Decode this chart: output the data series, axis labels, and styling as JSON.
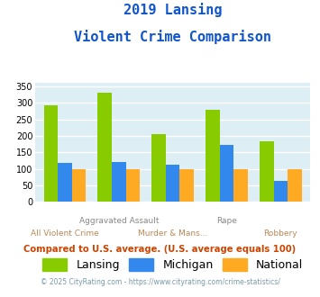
{
  "title_line1": "2019 Lansing",
  "title_line2": "Violent Crime Comparison",
  "categories": [
    "All Violent Crime",
    "Aggravated Assault",
    "Murder & Mans...",
    "Rape",
    "Robbery"
  ],
  "top_labels": [
    "",
    "Aggravated Assault",
    "",
    "Rape",
    ""
  ],
  "bottom_labels": [
    "All Violent Crime",
    "",
    "Murder & Mans...",
    "",
    "Robbery"
  ],
  "lansing": [
    292,
    330,
    205,
    278,
    184
  ],
  "michigan": [
    118,
    122,
    112,
    172,
    65
  ],
  "national": [
    100,
    100,
    100,
    100,
    100
  ],
  "colors": {
    "lansing": "#88cc00",
    "michigan": "#3388ee",
    "national": "#ffaa22"
  },
  "ylim": [
    0,
    360
  ],
  "yticks": [
    0,
    50,
    100,
    150,
    200,
    250,
    300,
    350
  ],
  "footnote1": "Compared to U.S. average. (U.S. average equals 100)",
  "footnote2": "© 2025 CityRating.com - https://www.cityrating.com/crime-statistics/",
  "title_color": "#1155cc",
  "top_label_color": "#888888",
  "bottom_label_color": "#bb8855",
  "footnote1_color": "#cc4400",
  "footnote2_color": "#7799aa",
  "bg_color": "#ddeef4",
  "grid_color": "#ffffff"
}
